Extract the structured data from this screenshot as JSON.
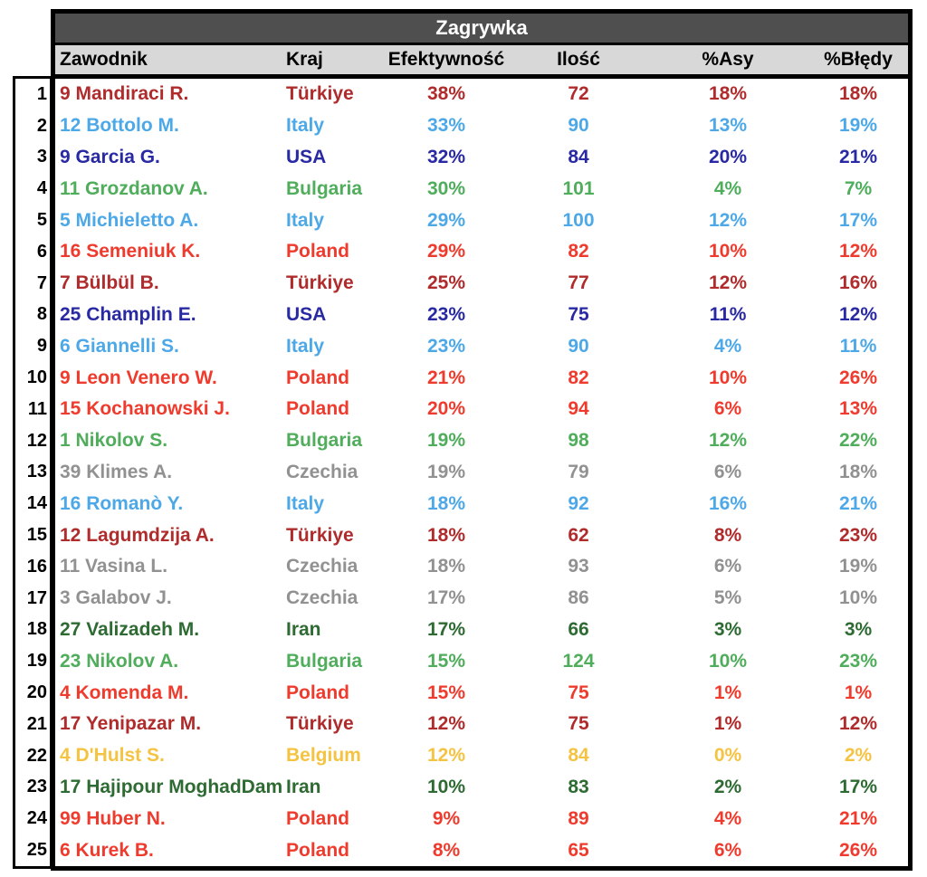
{
  "sheet": {
    "title": "Zagrywka",
    "columns": [
      {
        "key": "player",
        "label": "Zawodnik"
      },
      {
        "key": "country",
        "label": "Kraj"
      },
      {
        "key": "efficiency",
        "label": "Efektywność"
      },
      {
        "key": "count",
        "label": "Ilość"
      },
      {
        "key": "aces",
        "label": "%Asy"
      },
      {
        "key": "errors",
        "label": "%Błędy"
      }
    ],
    "rows": [
      {
        "rank": "1",
        "player": "9 Mandiraci R.",
        "country": "Türkiye",
        "efficiency": "38%",
        "count": "72",
        "aces": "18%",
        "errors": "18%",
        "color_key": "turkiye"
      },
      {
        "rank": "2",
        "player": "12 Bottolo M.",
        "country": "Italy",
        "efficiency": "33%",
        "count": "90",
        "aces": "13%",
        "errors": "19%",
        "color_key": "italy"
      },
      {
        "rank": "3",
        "player": "9 Garcia G.",
        "country": "USA",
        "efficiency": "32%",
        "count": "84",
        "aces": "20%",
        "errors": "21%",
        "color_key": "usa"
      },
      {
        "rank": "4",
        "player": "11 Grozdanov A.",
        "country": "Bulgaria",
        "efficiency": "30%",
        "count": "101",
        "aces": "4%",
        "errors": "7%",
        "color_key": "bulgaria"
      },
      {
        "rank": "5",
        "player": "5 Michieletto A.",
        "country": "Italy",
        "efficiency": "29%",
        "count": "100",
        "aces": "12%",
        "errors": "17%",
        "color_key": "italy"
      },
      {
        "rank": "6",
        "player": "16 Semeniuk K.",
        "country": "Poland",
        "efficiency": "29%",
        "count": "82",
        "aces": "10%",
        "errors": "12%",
        "color_key": "poland"
      },
      {
        "rank": "7",
        "player": "7 Bülbül B.",
        "country": "Türkiye",
        "efficiency": "25%",
        "count": "77",
        "aces": "12%",
        "errors": "16%",
        "color_key": "turkiye"
      },
      {
        "rank": "8",
        "player": "25 Champlin E.",
        "country": "USA",
        "efficiency": "23%",
        "count": "75",
        "aces": "11%",
        "errors": "12%",
        "color_key": "usa"
      },
      {
        "rank": "9",
        "player": "6 Giannelli S.",
        "country": "Italy",
        "efficiency": "23%",
        "count": "90",
        "aces": "4%",
        "errors": "11%",
        "color_key": "italy"
      },
      {
        "rank": "10",
        "player": "9 Leon Venero W.",
        "country": "Poland",
        "efficiency": "21%",
        "count": "82",
        "aces": "10%",
        "errors": "26%",
        "color_key": "poland"
      },
      {
        "rank": "11",
        "player": "15 Kochanowski J.",
        "country": "Poland",
        "efficiency": "20%",
        "count": "94",
        "aces": "6%",
        "errors": "13%",
        "color_key": "poland"
      },
      {
        "rank": "12",
        "player": "1 Nikolov S.",
        "country": "Bulgaria",
        "efficiency": "19%",
        "count": "98",
        "aces": "12%",
        "errors": "22%",
        "color_key": "bulgaria"
      },
      {
        "rank": "13",
        "player": "39 Klimes A.",
        "country": "Czechia",
        "efficiency": "19%",
        "count": "79",
        "aces": "6%",
        "errors": "18%",
        "color_key": "czechia"
      },
      {
        "rank": "14",
        "player": "16 Romanò Y.",
        "country": "Italy",
        "efficiency": "18%",
        "count": "92",
        "aces": "16%",
        "errors": "21%",
        "color_key": "italy"
      },
      {
        "rank": "15",
        "player": "12 Lagumdzija A.",
        "country": "Türkiye",
        "efficiency": "18%",
        "count": "62",
        "aces": "8%",
        "errors": "23%",
        "color_key": "turkiye"
      },
      {
        "rank": "16",
        "player": "11 Vasina L.",
        "country": "Czechia",
        "efficiency": "18%",
        "count": "93",
        "aces": "6%",
        "errors": "19%",
        "color_key": "czechia"
      },
      {
        "rank": "17",
        "player": "3 Galabov J.",
        "country": "Czechia",
        "efficiency": "17%",
        "count": "86",
        "aces": "5%",
        "errors": "10%",
        "color_key": "czechia"
      },
      {
        "rank": "18",
        "player": "27 Valizadeh M.",
        "country": "Iran",
        "efficiency": "17%",
        "count": "66",
        "aces": "3%",
        "errors": "3%",
        "color_key": "iran"
      },
      {
        "rank": "19",
        "player": "23 Nikolov A.",
        "country": "Bulgaria",
        "efficiency": "15%",
        "count": "124",
        "aces": "10%",
        "errors": "23%",
        "color_key": "bulgaria"
      },
      {
        "rank": "20",
        "player": "4 Komenda M.",
        "country": "Poland",
        "efficiency": "15%",
        "count": "75",
        "aces": "1%",
        "errors": "1%",
        "color_key": "poland"
      },
      {
        "rank": "21",
        "player": "17 Yenipazar M.",
        "country": "Türkiye",
        "efficiency": "12%",
        "count": "75",
        "aces": "1%",
        "errors": "12%",
        "color_key": "turkiye"
      },
      {
        "rank": "22",
        "player": "4 D'Hulst S.",
        "country": "Belgium",
        "efficiency": "12%",
        "count": "84",
        "aces": "0%",
        "errors": "2%",
        "color_key": "belgium"
      },
      {
        "rank": "23",
        "player": "17 Hajipour MoghadDam",
        "country": "Iran",
        "efficiency": "10%",
        "count": "83",
        "aces": "2%",
        "errors": "17%",
        "color_key": "iran"
      },
      {
        "rank": "24",
        "player": "99 Huber N.",
        "country": "Poland",
        "efficiency": "9%",
        "count": "89",
        "aces": "4%",
        "errors": "21%",
        "color_key": "poland"
      },
      {
        "rank": "25",
        "player": "6 Kurek B.",
        "country": "Poland",
        "efficiency": "8%",
        "count": "65",
        "aces": "6%",
        "errors": "26%",
        "color_key": "poland"
      }
    ]
  },
  "colors": {
    "title_bg": "#4F4F4F",
    "title_text": "#FFFFFF",
    "header_bg": "#D8D8D8",
    "header_text": "#000000",
    "border": "#000000",
    "row_number_text": "#000000",
    "country": {
      "turkiye": "#B02B2B",
      "italy": "#4DA8E8",
      "usa": "#2929A3",
      "bulgaria": "#4FAD5B",
      "poland": "#EF3B2D",
      "czechia": "#919191",
      "iran": "#2E6B33",
      "belgium": "#F5C342"
    }
  }
}
